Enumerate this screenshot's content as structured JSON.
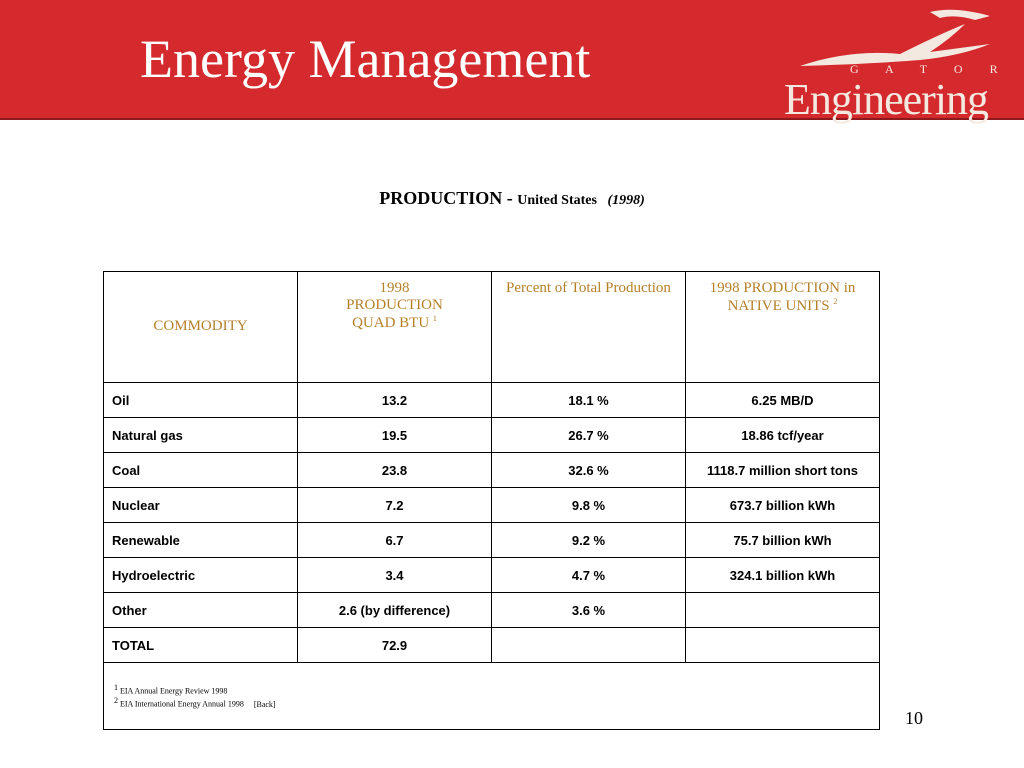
{
  "header": {
    "title": "Energy Management",
    "logo": {
      "text": "Engineering",
      "letters": "G A T O R"
    }
  },
  "subtitle": {
    "main": "PRODUCTION -",
    "region": "United States",
    "year": "(1998)"
  },
  "table": {
    "headers": [
      {
        "text": "COMMODITY"
      },
      {
        "text": "1998 PRODUCTION QUAD BTU",
        "note": "1"
      },
      {
        "text": "Percent of Total Production"
      },
      {
        "text": "1998 PRODUCTION in NATIVE UNITS",
        "note": "2"
      }
    ],
    "rows": [
      [
        "Oil",
        "13.2",
        "18.1 %",
        "6.25 MB/D"
      ],
      [
        "Natural gas",
        "19.5",
        "26.7 %",
        "18.86 tcf/year"
      ],
      [
        "Coal",
        "23.8",
        "32.6 %",
        "1118.7 million short tons"
      ],
      [
        "Nuclear",
        "7.2",
        "9.8 %",
        "673.7 billion kWh"
      ],
      [
        "Renewable",
        "6.7",
        "9.2 %",
        "75.7 billion kWh"
      ],
      [
        "Hydroelectric",
        "3.4",
        "4.7 %",
        "324.1 billion kWh"
      ],
      [
        "Other",
        "2.6 (by difference)",
        "3.6 %"
      ],
      [
        "TOTAL",
        "72.9"
      ]
    ],
    "footnotes": [
      {
        "mark": "1",
        "text": "EIA Annual Energy Review 1998"
      },
      {
        "mark": "2",
        "text": "EIA International Energy Annual 1998",
        "link": "[Back]"
      }
    ]
  },
  "page_number": "10"
}
